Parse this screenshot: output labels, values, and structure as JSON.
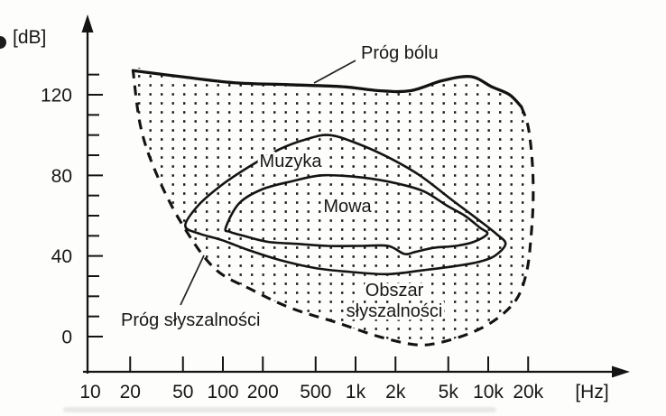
{
  "colors": {
    "ink": "#1a1a1a",
    "paper": "#fdfdfb"
  },
  "labels": {
    "pain_threshold": "Próg bólu",
    "hearing_threshold": "Próg słyszalności",
    "music": "Muzyka",
    "speech": "Mowa",
    "hearing_area_line1": "Obszar",
    "hearing_area_line2": "słyszalności"
  },
  "chart_data": {
    "type": "area",
    "x_scale": "log",
    "xlabel": "[Hz]",
    "ylabel": "[dB]",
    "xlim": [
      10,
      30000
    ],
    "ylim": [
      -10,
      140
    ],
    "x_ticks": [
      {
        "value": 10,
        "label": "10"
      },
      {
        "value": 20,
        "label": "20"
      },
      {
        "value": 50,
        "label": "50"
      },
      {
        "value": 100,
        "label": "100"
      },
      {
        "value": 200,
        "label": "200"
      },
      {
        "value": 500,
        "label": "500"
      },
      {
        "value": 1000,
        "label": "1k"
      },
      {
        "value": 2000,
        "label": "2k"
      },
      {
        "value": 5000,
        "label": "5k"
      },
      {
        "value": 10000,
        "label": "10k"
      },
      {
        "value": 20000,
        "label": "20k"
      }
    ],
    "y_major_ticks": [
      {
        "value": 0,
        "label": "0"
      },
      {
        "value": 40,
        "label": "40"
      },
      {
        "value": 80,
        "label": "80"
      },
      {
        "value": 120,
        "label": "120"
      }
    ],
    "y_minor_step": 10,
    "y_tick_range": [
      0,
      130
    ],
    "regions": [
      {
        "name": "hearing-area",
        "label": "Obszar słyszalności",
        "fill": "dots",
        "upper_boundary_style": "solid",
        "upper_boundary_label": "Próg bólu",
        "upper_boundary_hz_db": [
          [
            21,
            132
          ],
          [
            48,
            129
          ],
          [
            120,
            126
          ],
          [
            310,
            125
          ],
          [
            800,
            124
          ],
          [
            1500,
            122
          ],
          [
            2600,
            122
          ],
          [
            4500,
            127
          ],
          [
            7400,
            129
          ],
          [
            10600,
            124
          ],
          [
            14500,
            120
          ],
          [
            17800,
            114
          ]
        ],
        "lower_boundary_style": "dashed",
        "lower_boundary_label": "Próg słyszalności",
        "lower_boundary_hz_db": [
          [
            17800,
            114
          ],
          [
            20000,
            104
          ],
          [
            21500,
            86
          ],
          [
            21800,
            68
          ],
          [
            21100,
            51
          ],
          [
            19600,
            33
          ],
          [
            16500,
            19
          ],
          [
            11700,
            9
          ],
          [
            7500,
            2
          ],
          [
            4300,
            -3
          ],
          [
            2800,
            -4
          ],
          [
            1500,
            0
          ],
          [
            720,
            7
          ],
          [
            330,
            14
          ],
          [
            168,
            23
          ],
          [
            86,
            34
          ],
          [
            48,
            57
          ],
          [
            31,
            82
          ],
          [
            24,
            104
          ],
          [
            21,
            132
          ]
        ]
      },
      {
        "name": "music",
        "label": "Muzyka",
        "fill": "hatch",
        "boundary_hz_db": [
          [
            52,
            55
          ],
          [
            65,
            65
          ],
          [
            97,
            75
          ],
          [
            155,
            84
          ],
          [
            268,
            93
          ],
          [
            430,
            98
          ],
          [
            634,
            100
          ],
          [
            1014,
            96
          ],
          [
            1757,
            89
          ],
          [
            3045,
            80
          ],
          [
            5276,
            68
          ],
          [
            8414,
            58
          ],
          [
            11500,
            51
          ],
          [
            13500,
            46
          ],
          [
            11170,
            40
          ],
          [
            8414,
            37
          ],
          [
            5700,
            35
          ],
          [
            3290,
            33
          ],
          [
            1757,
            31
          ],
          [
            938,
            32
          ],
          [
            500,
            34
          ],
          [
            268,
            38
          ],
          [
            155,
            43
          ],
          [
            97,
            48
          ],
          [
            67,
            51
          ]
        ]
      },
      {
        "name": "speech",
        "label": "Mowa",
        "fill": "dashes",
        "boundary_hz_db": [
          [
            105,
            54
          ],
          [
            132,
            66
          ],
          [
            196,
            73
          ],
          [
            329,
            77
          ],
          [
            559,
            80
          ],
          [
            1100,
            79
          ],
          [
            2052,
            76
          ],
          [
            3290,
            72
          ],
          [
            4870,
            65
          ],
          [
            6650,
            60
          ],
          [
            8672,
            54
          ],
          [
            9850,
            51
          ],
          [
            7780,
            47
          ],
          [
            5700,
            45
          ],
          [
            3850,
            44
          ],
          [
            2815,
            42
          ],
          [
            2335,
            41
          ],
          [
            1757,
            45
          ],
          [
            1100,
            45
          ],
          [
            616,
            45
          ],
          [
            368,
            46
          ],
          [
            218,
            47
          ],
          [
            143,
            50
          ],
          [
            113,
            52
          ]
        ]
      }
    ]
  }
}
